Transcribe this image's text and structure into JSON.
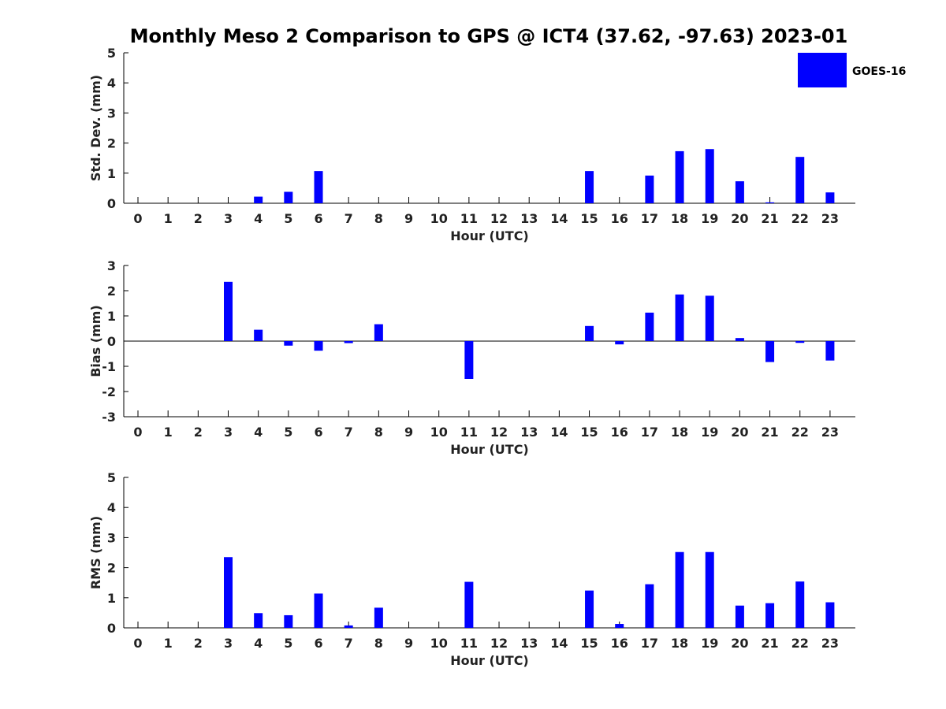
{
  "title": "Monthly Meso 2 Comparison to GPS @ ICT4 (37.62, -97.63) 2023-01",
  "legend": {
    "label": "GOES-16",
    "color": "#0000ff",
    "position": "top-right"
  },
  "chart_data": [
    {
      "type": "bar",
      "ylabel": "Std. Dev. (mm)",
      "xlabel": "Hour (UTC)",
      "ylim": [
        0,
        5
      ],
      "yticks": [
        0,
        1,
        2,
        3,
        4,
        5
      ],
      "categories": [
        "0",
        "1",
        "2",
        "3",
        "4",
        "5",
        "6",
        "7",
        "8",
        "9",
        "10",
        "11",
        "12",
        "13",
        "14",
        "15",
        "16",
        "17",
        "18",
        "19",
        "20",
        "21",
        "22",
        "23"
      ],
      "series": [
        {
          "values": [
            0,
            0,
            0,
            0,
            0.22,
            0.38,
            1.07,
            0,
            0,
            0,
            0,
            0,
            0,
            0,
            0,
            1.07,
            0,
            0.92,
            1.73,
            1.8,
            0.73,
            0.03,
            1.54,
            0.36
          ]
        }
      ]
    },
    {
      "type": "bar",
      "ylabel": "Bias (mm)",
      "xlabel": "Hour (UTC)",
      "ylim": [
        -3,
        3
      ],
      "yticks": [
        -3,
        -2,
        -1,
        0,
        1,
        2,
        3
      ],
      "zero_line": true,
      "categories": [
        "0",
        "1",
        "2",
        "3",
        "4",
        "5",
        "6",
        "7",
        "8",
        "9",
        "10",
        "11",
        "12",
        "13",
        "14",
        "15",
        "16",
        "17",
        "18",
        "19",
        "20",
        "21",
        "22",
        "23"
      ],
      "series": [
        {
          "values": [
            0,
            0,
            0,
            2.35,
            0.45,
            -0.18,
            -0.38,
            -0.08,
            0.67,
            0,
            0,
            -1.5,
            0,
            0,
            0,
            0.6,
            -0.13,
            1.13,
            1.85,
            1.8,
            0.12,
            -0.83,
            -0.07,
            -0.77
          ]
        }
      ]
    },
    {
      "type": "bar",
      "ylabel": "RMS (mm)",
      "xlabel": "Hour (UTC)",
      "ylim": [
        0,
        5
      ],
      "yticks": [
        0,
        1,
        2,
        3,
        4,
        5
      ],
      "categories": [
        "0",
        "1",
        "2",
        "3",
        "4",
        "5",
        "6",
        "7",
        "8",
        "9",
        "10",
        "11",
        "12",
        "13",
        "14",
        "15",
        "16",
        "17",
        "18",
        "19",
        "20",
        "21",
        "22",
        "23"
      ],
      "series": [
        {
          "values": [
            0,
            0,
            0,
            2.35,
            0.49,
            0.42,
            1.14,
            0.08,
            0.67,
            0,
            0,
            1.53,
            0,
            0,
            0,
            1.24,
            0.13,
            1.45,
            2.52,
            2.52,
            0.74,
            0.82,
            1.54,
            0.85
          ]
        }
      ]
    }
  ]
}
